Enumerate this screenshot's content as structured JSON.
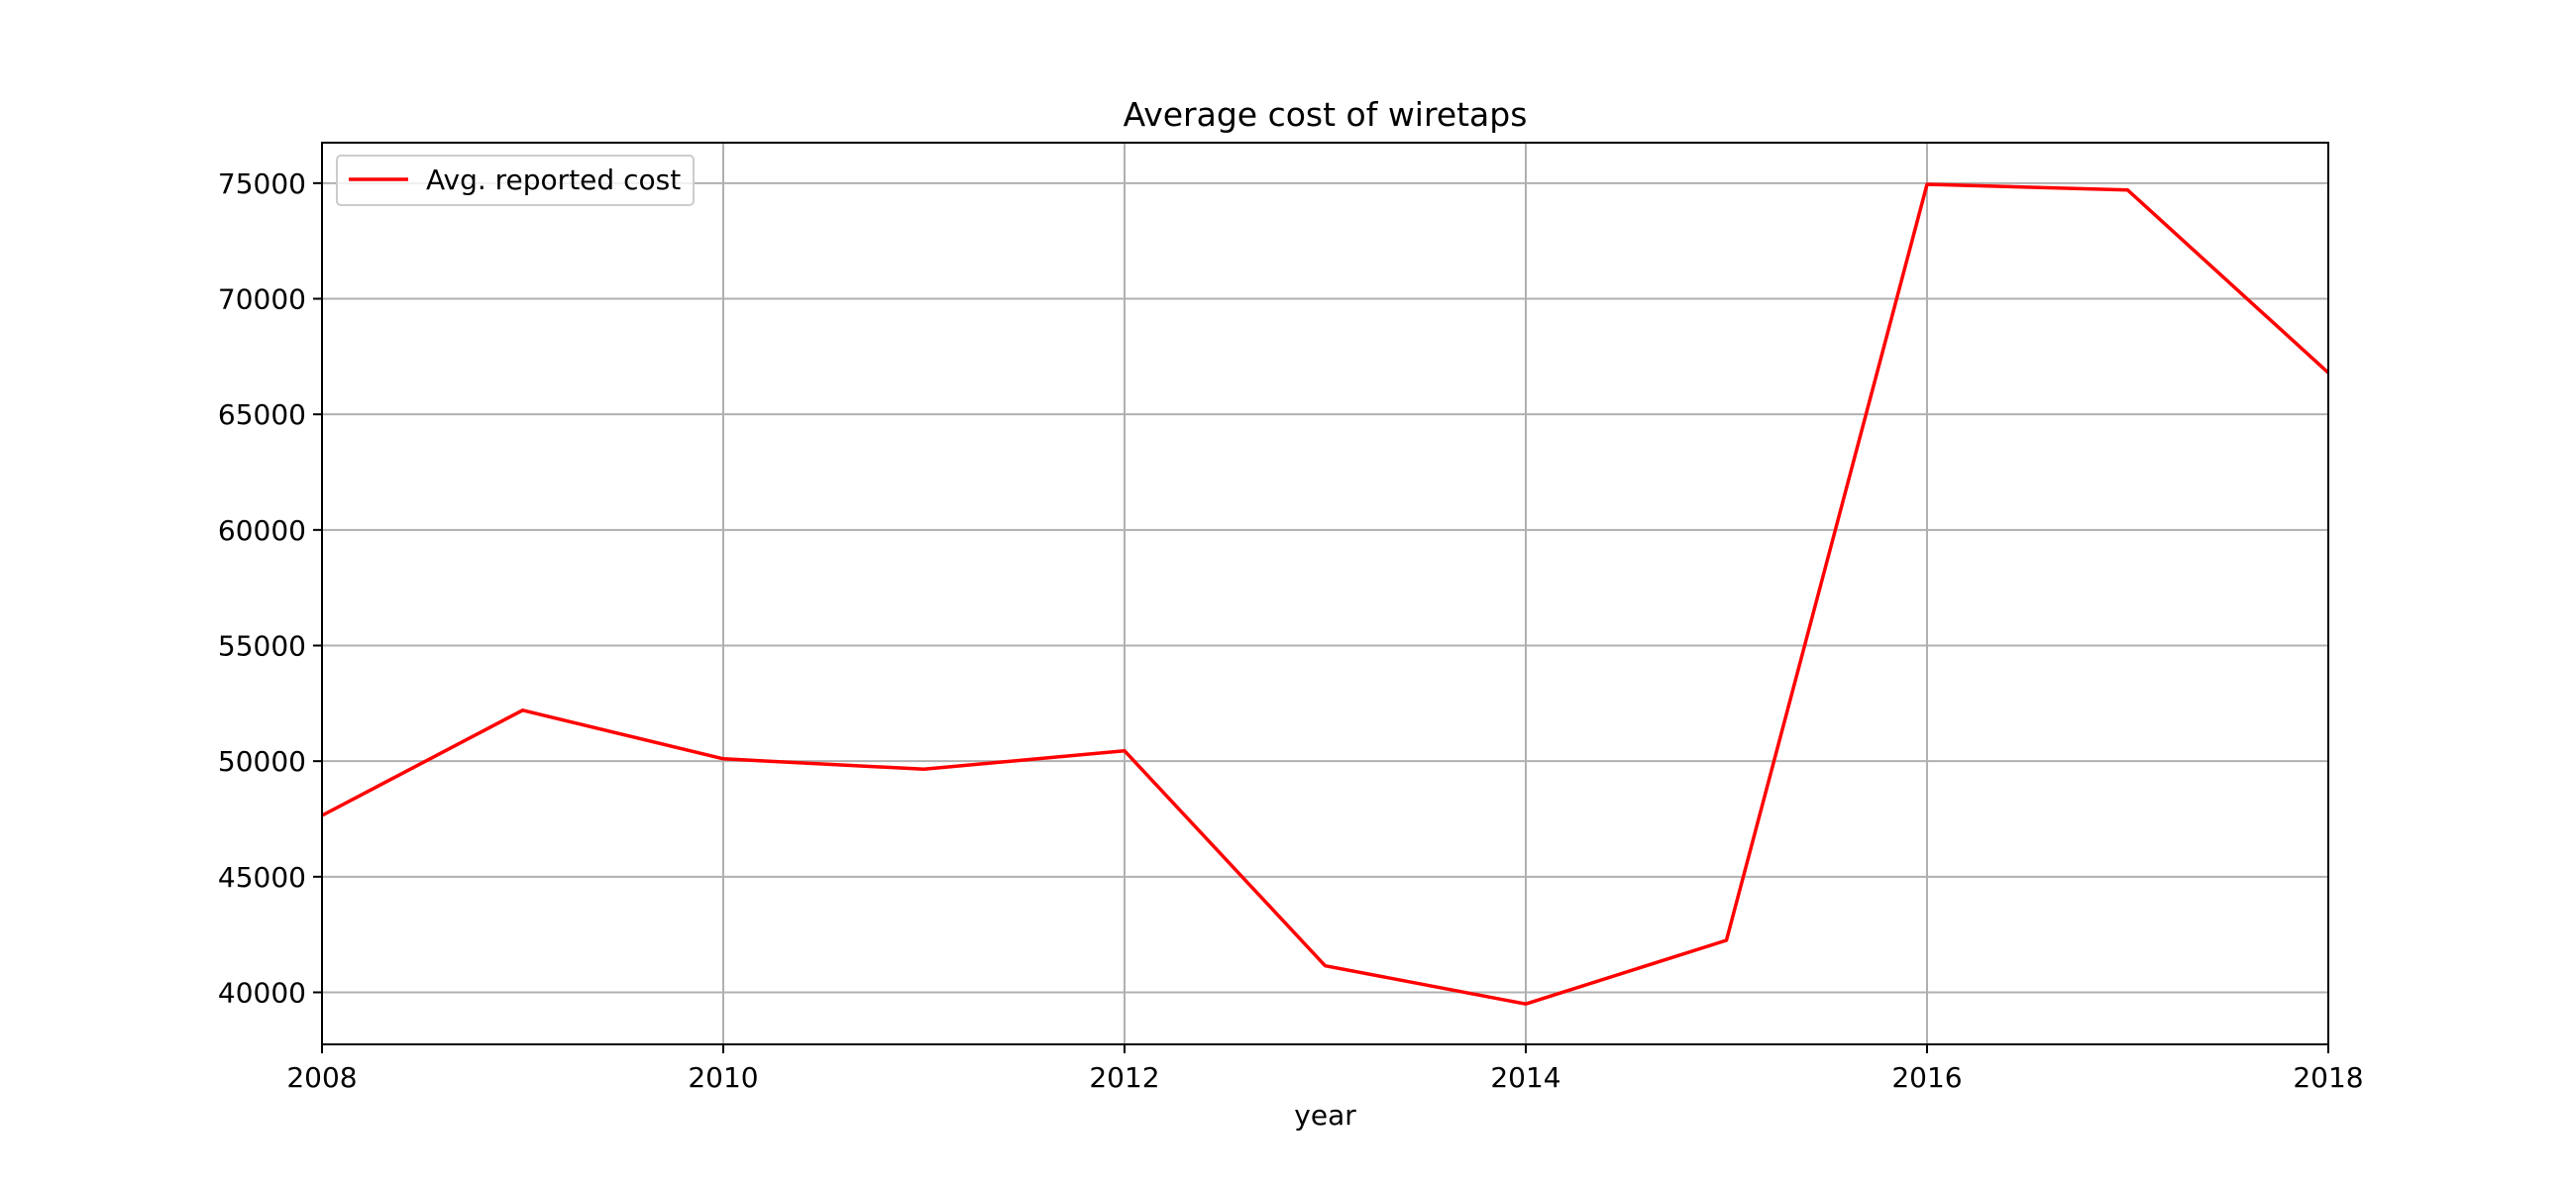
{
  "chart_data": {
    "type": "line",
    "title": "Average cost of wiretaps",
    "xlabel": "year",
    "ylabel": "",
    "x": [
      2008,
      2009,
      2010,
      2011,
      2012,
      2013,
      2014,
      2015,
      2016,
      2017,
      2018
    ],
    "series": [
      {
        "name": "Avg. reported cost",
        "color": "#ff0000",
        "values": [
          47650,
          52200,
          50100,
          49650,
          50450,
          41150,
          39500,
          42250,
          74950,
          74700,
          66800
        ]
      }
    ],
    "xlim": [
      2008,
      2018
    ],
    "ylim": [
      37750,
      76750
    ],
    "xticks": [
      2008,
      2010,
      2012,
      2014,
      2016,
      2018
    ],
    "xtick_labels": [
      "2008",
      "2010",
      "2012",
      "2014",
      "2016",
      "2018"
    ],
    "yticks": [
      40000,
      45000,
      50000,
      55000,
      60000,
      65000,
      70000,
      75000
    ],
    "ytick_labels": [
      "40000",
      "45000",
      "50000",
      "55000",
      "60000",
      "65000",
      "70000",
      "75000"
    ],
    "grid": true,
    "legend_position": "top-left"
  }
}
